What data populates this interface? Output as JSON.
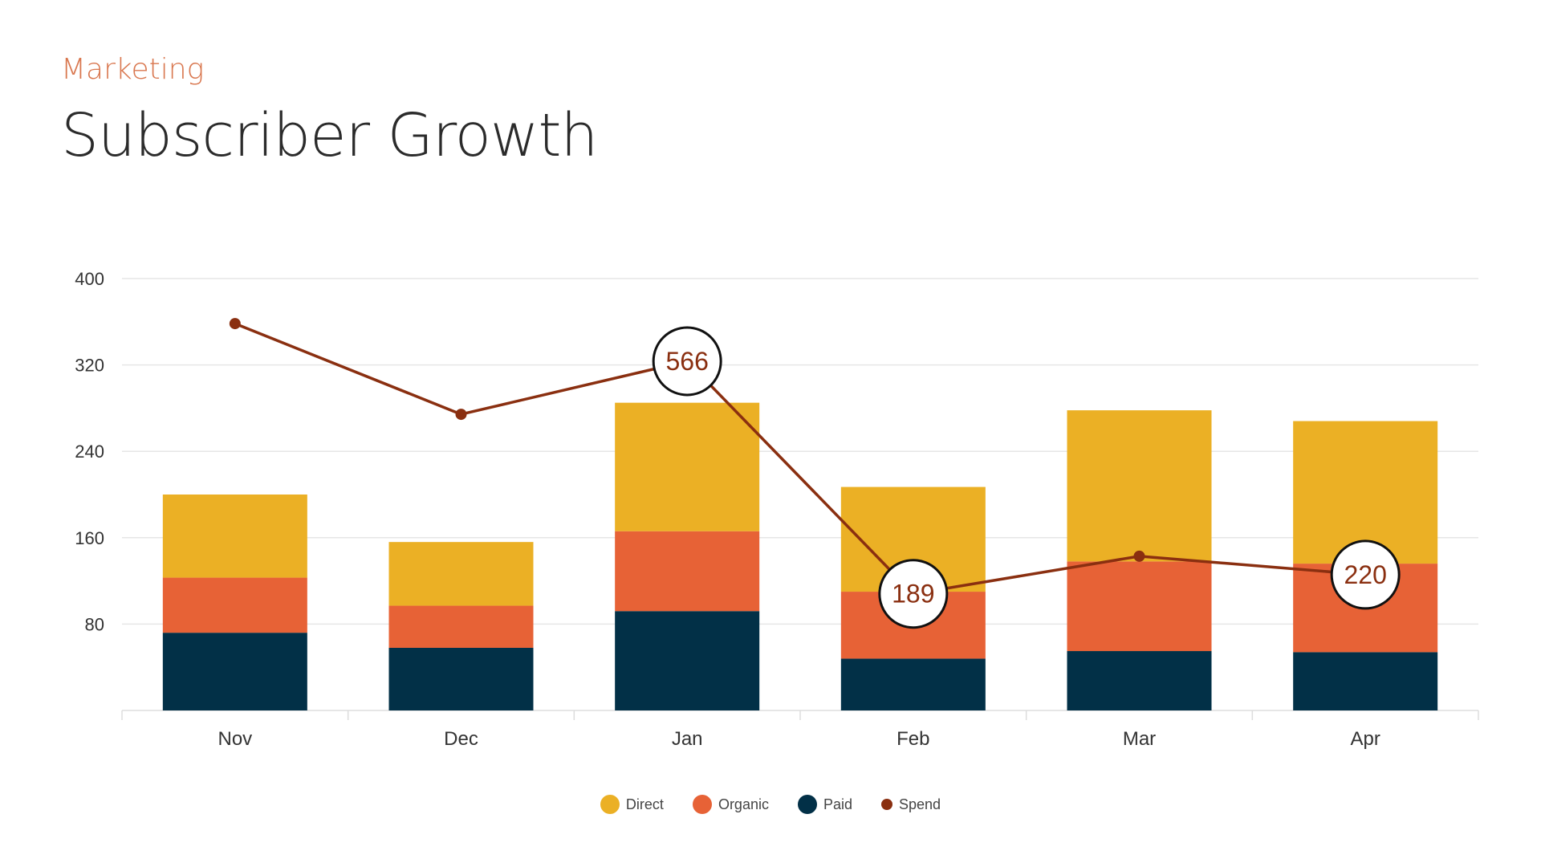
{
  "header": {
    "kicker": "Marketing",
    "title": "Subscriber Growth"
  },
  "chart_data": {
    "type": "bar",
    "stacked": true,
    "categories": [
      "Nov",
      "Dec",
      "Jan",
      "Feb",
      "Mar",
      "Apr"
    ],
    "y_ticks": [
      80,
      160,
      240,
      320,
      400
    ],
    "ylim": [
      0,
      400
    ],
    "grid": true,
    "legend_position": "bottom",
    "series": [
      {
        "name": "Paid",
        "color": "#023047",
        "values": [
          72,
          58,
          92,
          48,
          55,
          54
        ]
      },
      {
        "name": "Organic",
        "color": "#e76236",
        "values": [
          51,
          39,
          74,
          62,
          83,
          82
        ]
      },
      {
        "name": "Direct",
        "color": "#ebb025",
        "values": [
          77,
          59,
          119,
          97,
          140,
          132
        ]
      }
    ],
    "line": {
      "name": "Spend",
      "type": "line",
      "color": "#8a2f10",
      "ylim": [
        0,
        700
      ],
      "values": [
        627,
        480,
        566,
        189,
        250,
        220
      ],
      "labels": [
        "",
        "",
        "566",
        "189",
        "",
        "220"
      ]
    }
  }
}
